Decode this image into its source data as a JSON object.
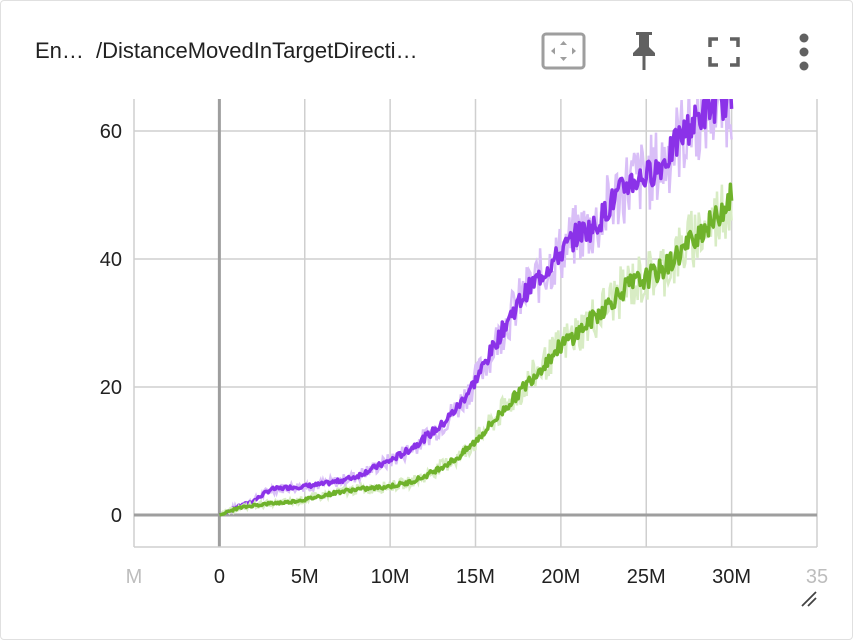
{
  "header": {
    "title_short": "En…",
    "title_main": "/DistanceMovedInTargetDirecti…",
    "icons": [
      "fit-domain-icon",
      "pin-icon",
      "fullscreen-icon",
      "more-vert-icon"
    ]
  },
  "colors": {
    "purple_main": "#8b32e8",
    "purple_raw": "#d9bff7",
    "green_main": "#6fb22b",
    "green_raw": "#d8ecc4",
    "grid": "#cfcfcf",
    "axis": "#9e9e9e"
  },
  "chart_data": {
    "type": "line",
    "title": "",
    "xlabel": "",
    "ylabel": "",
    "xlim": [
      -5000000,
      35000000
    ],
    "ylim": [
      -5,
      65
    ],
    "x_ticks": [
      "M",
      "0",
      "5M",
      "10M",
      "15M",
      "20M",
      "25M",
      "30M",
      "35"
    ],
    "y_ticks": [
      "0",
      "20",
      "40",
      "60"
    ],
    "grid": true,
    "series": [
      {
        "color": "#8b32e8",
        "x": [
          0,
          1000000,
          2000000,
          3000000,
          4000000,
          5000000,
          6000000,
          7000000,
          8000000,
          9000000,
          10000000,
          11000000,
          12000000,
          13000000,
          14000000,
          15000000,
          16000000,
          17000000,
          18000000,
          19000000,
          20000000,
          21000000,
          22000000,
          23000000,
          24000000,
          25000000,
          26000000,
          27000000,
          28000000,
          29000000,
          30000000
        ],
        "values": [
          0,
          1.2,
          2.2,
          4.0,
          4.3,
          4.5,
          4.8,
          5.3,
          6.0,
          7.3,
          8.5,
          10.0,
          12.0,
          14.0,
          17.0,
          21.0,
          26.0,
          31.0,
          35.0,
          38.0,
          41.0,
          44.0,
          45.0,
          49.0,
          52.0,
          53.0,
          55.0,
          59.0,
          62.0,
          64.0,
          65.0
        ]
      },
      {
        "color": "#6fb22b",
        "x": [
          0,
          1000000,
          2000000,
          3000000,
          4000000,
          5000000,
          6000000,
          7000000,
          8000000,
          9000000,
          10000000,
          11000000,
          12000000,
          13000000,
          14000000,
          15000000,
          16000000,
          17000000,
          18000000,
          19000000,
          20000000,
          21000000,
          22000000,
          23000000,
          24000000,
          25000000,
          26000000,
          27000000,
          28000000,
          29000000,
          30000000
        ],
        "values": [
          0,
          1.0,
          1.5,
          1.8,
          2.0,
          2.4,
          3.0,
          3.6,
          4.0,
          4.2,
          4.5,
          5.0,
          6.0,
          7.5,
          9.0,
          11.5,
          14.5,
          17.5,
          20.5,
          23.5,
          26.5,
          28.5,
          31.0,
          33.5,
          36.0,
          37.0,
          38.5,
          41.0,
          44.0,
          46.0,
          50.0
        ]
      }
    ]
  }
}
